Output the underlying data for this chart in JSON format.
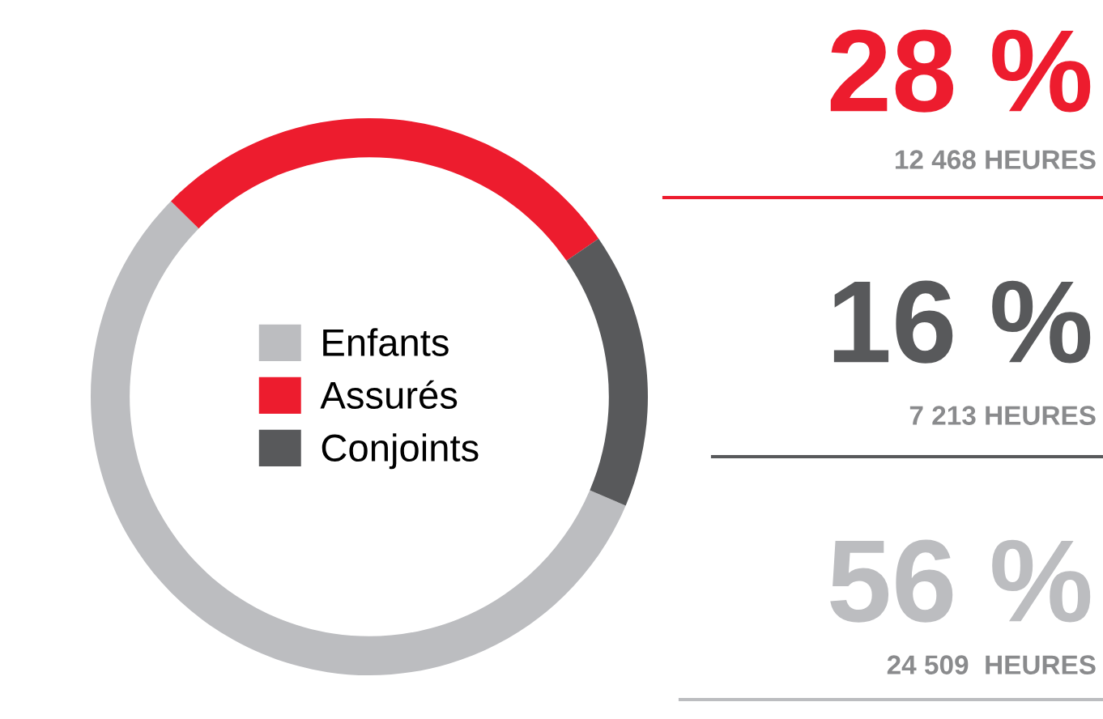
{
  "chart_data": {
    "type": "donut",
    "categories": [
      "Enfants",
      "Assurés",
      "Conjoints"
    ],
    "values": [
      56,
      28,
      16
    ],
    "colors": [
      "#bcbdc0",
      "#ed1c2e",
      "#58595b"
    ],
    "value_labels": [
      "56 %",
      "28 %",
      "16 %"
    ],
    "annotations": [
      "24 509  HEURES",
      "12 468 HEURES",
      "7 213 HEURES"
    ],
    "legend": "center"
  }
}
